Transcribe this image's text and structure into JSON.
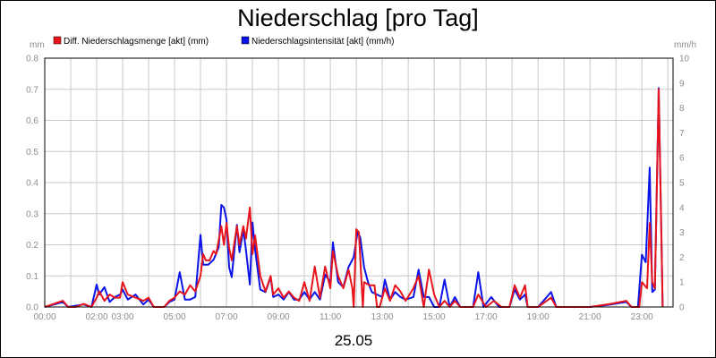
{
  "chart_data": {
    "type": "line",
    "title": "Niederschlag [pro Tag]",
    "date_label": "25.05",
    "y_left_unit": "mm",
    "y_right_unit": "mm/h",
    "y_left_lim": [
      0,
      0.8
    ],
    "y_right_lim": [
      0,
      10
    ],
    "y_left_ticks": [
      "0.0",
      "0.1",
      "0.2",
      "0.3",
      "0.4",
      "0.5",
      "0.6",
      "0.7",
      "0.8"
    ],
    "y_right_ticks": [
      "0",
      "1",
      "2",
      "3",
      "4",
      "5",
      "6",
      "7",
      "8",
      "9",
      "10"
    ],
    "x_lim": [
      0,
      24.2
    ],
    "x_ticks": [
      {
        "t": 0,
        "label": "00:00"
      },
      {
        "t": 2,
        "label": "02:00"
      },
      {
        "t": 3,
        "label": "03:00"
      },
      {
        "t": 5,
        "label": "05:00"
      },
      {
        "t": 7,
        "label": "07:00"
      },
      {
        "t": 9,
        "label": "09:00"
      },
      {
        "t": 11,
        "label": "11:00"
      },
      {
        "t": 13,
        "label": "13:00"
      },
      {
        "t": 15,
        "label": "15:00"
      },
      {
        "t": 17,
        "label": "17:00"
      },
      {
        "t": 19,
        "label": "19:00"
      },
      {
        "t": 21,
        "label": "21:00"
      },
      {
        "t": 23,
        "label": "23:00"
      }
    ],
    "grid": true,
    "legend_position": "top-left",
    "series": [
      {
        "name": "Diff. Niederschlagsmenge [akt] (mm)",
        "color": "#e8141c",
        "axis": "left",
        "points": [
          [
            0.0,
            0.0
          ],
          [
            0.7,
            0.02
          ],
          [
            0.9,
            0.0
          ],
          [
            1.2,
            0.0
          ],
          [
            1.5,
            0.01
          ],
          [
            1.8,
            0.0
          ],
          [
            2.0,
            0.03
          ],
          [
            2.1,
            0.05
          ],
          [
            2.3,
            0.02
          ],
          [
            2.5,
            0.04
          ],
          [
            2.7,
            0.03
          ],
          [
            2.9,
            0.03
          ],
          [
            3.0,
            0.08
          ],
          [
            3.2,
            0.04
          ],
          [
            3.5,
            0.03
          ],
          [
            3.8,
            0.02
          ],
          [
            4.0,
            0.03
          ],
          [
            4.2,
            0.0
          ],
          [
            4.6,
            0.0
          ],
          [
            4.8,
            0.02
          ],
          [
            5.0,
            0.03
          ],
          [
            5.2,
            0.05
          ],
          [
            5.4,
            0.04
          ],
          [
            5.6,
            0.07
          ],
          [
            5.8,
            0.05
          ],
          [
            6.0,
            0.1
          ],
          [
            6.1,
            0.17
          ],
          [
            6.2,
            0.15
          ],
          [
            6.35,
            0.15
          ],
          [
            6.5,
            0.18
          ],
          [
            6.6,
            0.17
          ],
          [
            6.8,
            0.26
          ],
          [
            6.9,
            0.2
          ],
          [
            7.0,
            0.27
          ],
          [
            7.1,
            0.19
          ],
          [
            7.2,
            0.15
          ],
          [
            7.4,
            0.26
          ],
          [
            7.5,
            0.2
          ],
          [
            7.65,
            0.26
          ],
          [
            7.75,
            0.22
          ],
          [
            7.9,
            0.32
          ],
          [
            8.0,
            0.17
          ],
          [
            8.1,
            0.23
          ],
          [
            8.3,
            0.1
          ],
          [
            8.5,
            0.05
          ],
          [
            8.7,
            0.1
          ],
          [
            8.8,
            0.04
          ],
          [
            9.0,
            0.06
          ],
          [
            9.2,
            0.03
          ],
          [
            9.4,
            0.05
          ],
          [
            9.6,
            0.03
          ],
          [
            9.8,
            0.02
          ],
          [
            10.0,
            0.08
          ],
          [
            10.2,
            0.02
          ],
          [
            10.4,
            0.13
          ],
          [
            10.6,
            0.03
          ],
          [
            10.8,
            0.13
          ],
          [
            11.0,
            0.06
          ],
          [
            11.1,
            0.18
          ],
          [
            11.3,
            0.1
          ],
          [
            11.5,
            0.06
          ],
          [
            11.7,
            0.12
          ],
          [
            11.85,
            0.06
          ],
          [
            11.9,
            0.0
          ],
          [
            12.0,
            0.25
          ],
          [
            12.1,
            0.24
          ],
          [
            12.25,
            0.0
          ],
          [
            12.3,
            0.08
          ],
          [
            12.5,
            0.07
          ],
          [
            12.7,
            0.07
          ],
          [
            12.8,
            0.0
          ],
          [
            12.9,
            0.0
          ],
          [
            13.1,
            0.06
          ],
          [
            13.3,
            0.02
          ],
          [
            13.5,
            0.07
          ],
          [
            13.7,
            0.05
          ],
          [
            13.9,
            0.02
          ],
          [
            14.2,
            0.06
          ],
          [
            14.4,
            0.1
          ],
          [
            14.6,
            0.0
          ],
          [
            14.8,
            0.12
          ],
          [
            15.0,
            0.04
          ],
          [
            15.2,
            0.0
          ],
          [
            15.4,
            0.02
          ],
          [
            15.6,
            0.0
          ],
          [
            15.8,
            0.02
          ],
          [
            16.0,
            0.0
          ],
          [
            16.5,
            0.0
          ],
          [
            16.7,
            0.04
          ],
          [
            17.0,
            0.0
          ],
          [
            17.3,
            0.02
          ],
          [
            17.6,
            0.0
          ],
          [
            17.9,
            0.0
          ],
          [
            18.1,
            0.07
          ],
          [
            18.3,
            0.03
          ],
          [
            18.5,
            0.07
          ],
          [
            18.6,
            0.0
          ],
          [
            19.0,
            0.0
          ],
          [
            19.5,
            0.03
          ],
          [
            19.7,
            0.0
          ],
          [
            20.0,
            0.0
          ],
          [
            21.0,
            0.0
          ],
          [
            21.8,
            0.01
          ],
          [
            22.4,
            0.02
          ],
          [
            22.6,
            0.0
          ],
          [
            22.9,
            0.0
          ],
          [
            23.0,
            0.08
          ],
          [
            23.2,
            0.06
          ],
          [
            23.3,
            0.27
          ],
          [
            23.4,
            0.08
          ],
          [
            23.5,
            0.06
          ],
          [
            23.65,
            0.7
          ],
          [
            23.8,
            0.0
          ]
        ]
      },
      {
        "name": "Niederschlagsintensität [akt] (mm/h)",
        "color": "#0a14e6",
        "axis": "right",
        "points": [
          [
            0.0,
            0.0
          ],
          [
            0.7,
            0.2
          ],
          [
            0.9,
            0.0
          ],
          [
            1.5,
            0.1
          ],
          [
            1.8,
            0.0
          ],
          [
            2.0,
            0.9
          ],
          [
            2.1,
            0.5
          ],
          [
            2.3,
            0.8
          ],
          [
            2.5,
            0.2
          ],
          [
            2.7,
            0.4
          ],
          [
            2.9,
            0.5
          ],
          [
            3.0,
            0.7
          ],
          [
            3.2,
            0.3
          ],
          [
            3.5,
            0.5
          ],
          [
            3.8,
            0.1
          ],
          [
            4.0,
            0.3
          ],
          [
            4.2,
            0.0
          ],
          [
            4.6,
            0.0
          ],
          [
            4.8,
            0.2
          ],
          [
            5.0,
            0.3
          ],
          [
            5.2,
            1.4
          ],
          [
            5.4,
            0.3
          ],
          [
            5.6,
            0.3
          ],
          [
            5.8,
            0.4
          ],
          [
            6.0,
            2.9
          ],
          [
            6.1,
            1.7
          ],
          [
            6.3,
            1.7
          ],
          [
            6.5,
            1.9
          ],
          [
            6.7,
            2.4
          ],
          [
            6.8,
            4.1
          ],
          [
            6.9,
            4.0
          ],
          [
            7.0,
            3.5
          ],
          [
            7.1,
            1.6
          ],
          [
            7.2,
            1.2
          ],
          [
            7.4,
            3.3
          ],
          [
            7.5,
            2.2
          ],
          [
            7.65,
            3.1
          ],
          [
            7.75,
            2.3
          ],
          [
            7.9,
            0.9
          ],
          [
            8.0,
            3.4
          ],
          [
            8.1,
            2.3
          ],
          [
            8.3,
            0.7
          ],
          [
            8.5,
            0.6
          ],
          [
            8.7,
            1.2
          ],
          [
            8.8,
            0.4
          ],
          [
            9.0,
            0.5
          ],
          [
            9.2,
            0.3
          ],
          [
            9.4,
            0.6
          ],
          [
            9.6,
            0.3
          ],
          [
            9.8,
            0.3
          ],
          [
            10.0,
            0.6
          ],
          [
            10.2,
            0.3
          ],
          [
            10.4,
            0.6
          ],
          [
            10.6,
            0.3
          ],
          [
            10.8,
            1.3
          ],
          [
            11.0,
            1.0
          ],
          [
            11.1,
            2.6
          ],
          [
            11.3,
            1.0
          ],
          [
            11.5,
            0.8
          ],
          [
            11.7,
            1.6
          ],
          [
            11.9,
            2.0
          ],
          [
            12.05,
            3.0
          ],
          [
            12.15,
            2.8
          ],
          [
            12.3,
            1.6
          ],
          [
            12.45,
            1.0
          ],
          [
            12.6,
            0.6
          ],
          [
            12.8,
            0.5
          ],
          [
            13.0,
            0.4
          ],
          [
            13.1,
            1.1
          ],
          [
            13.3,
            0.3
          ],
          [
            13.5,
            0.6
          ],
          [
            13.7,
            0.4
          ],
          [
            13.9,
            0.3
          ],
          [
            14.2,
            0.4
          ],
          [
            14.4,
            1.5
          ],
          [
            14.6,
            0.4
          ],
          [
            14.8,
            0.4
          ],
          [
            15.0,
            0.0
          ],
          [
            15.2,
            0.0
          ],
          [
            15.4,
            1.1
          ],
          [
            15.6,
            0.0
          ],
          [
            15.8,
            0.4
          ],
          [
            16.0,
            0.0
          ],
          [
            16.5,
            0.0
          ],
          [
            16.7,
            1.4
          ],
          [
            16.9,
            0.0
          ],
          [
            17.2,
            0.4
          ],
          [
            17.5,
            0.0
          ],
          [
            17.9,
            0.0
          ],
          [
            18.1,
            0.7
          ],
          [
            18.3,
            0.3
          ],
          [
            18.5,
            0.5
          ],
          [
            18.6,
            0.0
          ],
          [
            19.0,
            0.0
          ],
          [
            19.5,
            0.6
          ],
          [
            19.7,
            0.0
          ],
          [
            20.0,
            0.0
          ],
          [
            21.0,
            0.0
          ],
          [
            21.8,
            0.1
          ],
          [
            22.4,
            0.2
          ],
          [
            22.6,
            0.0
          ],
          [
            22.85,
            0.0
          ],
          [
            23.0,
            2.1
          ],
          [
            23.15,
            1.8
          ],
          [
            23.3,
            5.6
          ],
          [
            23.4,
            0.6
          ],
          [
            23.5,
            0.7
          ],
          [
            23.65,
            8.8
          ],
          [
            23.8,
            0.0
          ]
        ]
      }
    ]
  }
}
